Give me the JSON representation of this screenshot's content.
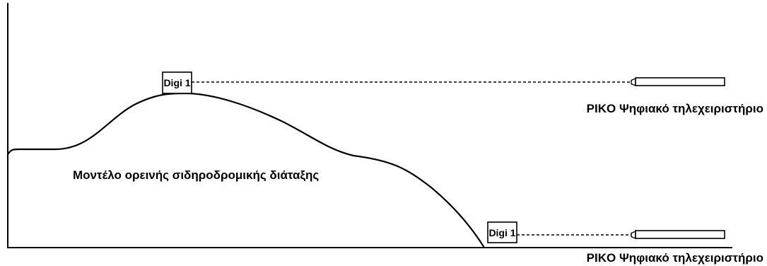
{
  "diagram": {
    "layout_caption": "Μοντέλο ορεινής σιδηροδρομικής διάταξης",
    "modules": [
      {
        "label": "Digi 1",
        "controller_caption": "PIKO Ψηφιακό τηλεχειριστήριο"
      },
      {
        "label": "Digi 1",
        "controller_caption": "PIKO Ψηφιακό τηλεχειριστήριο"
      }
    ]
  }
}
